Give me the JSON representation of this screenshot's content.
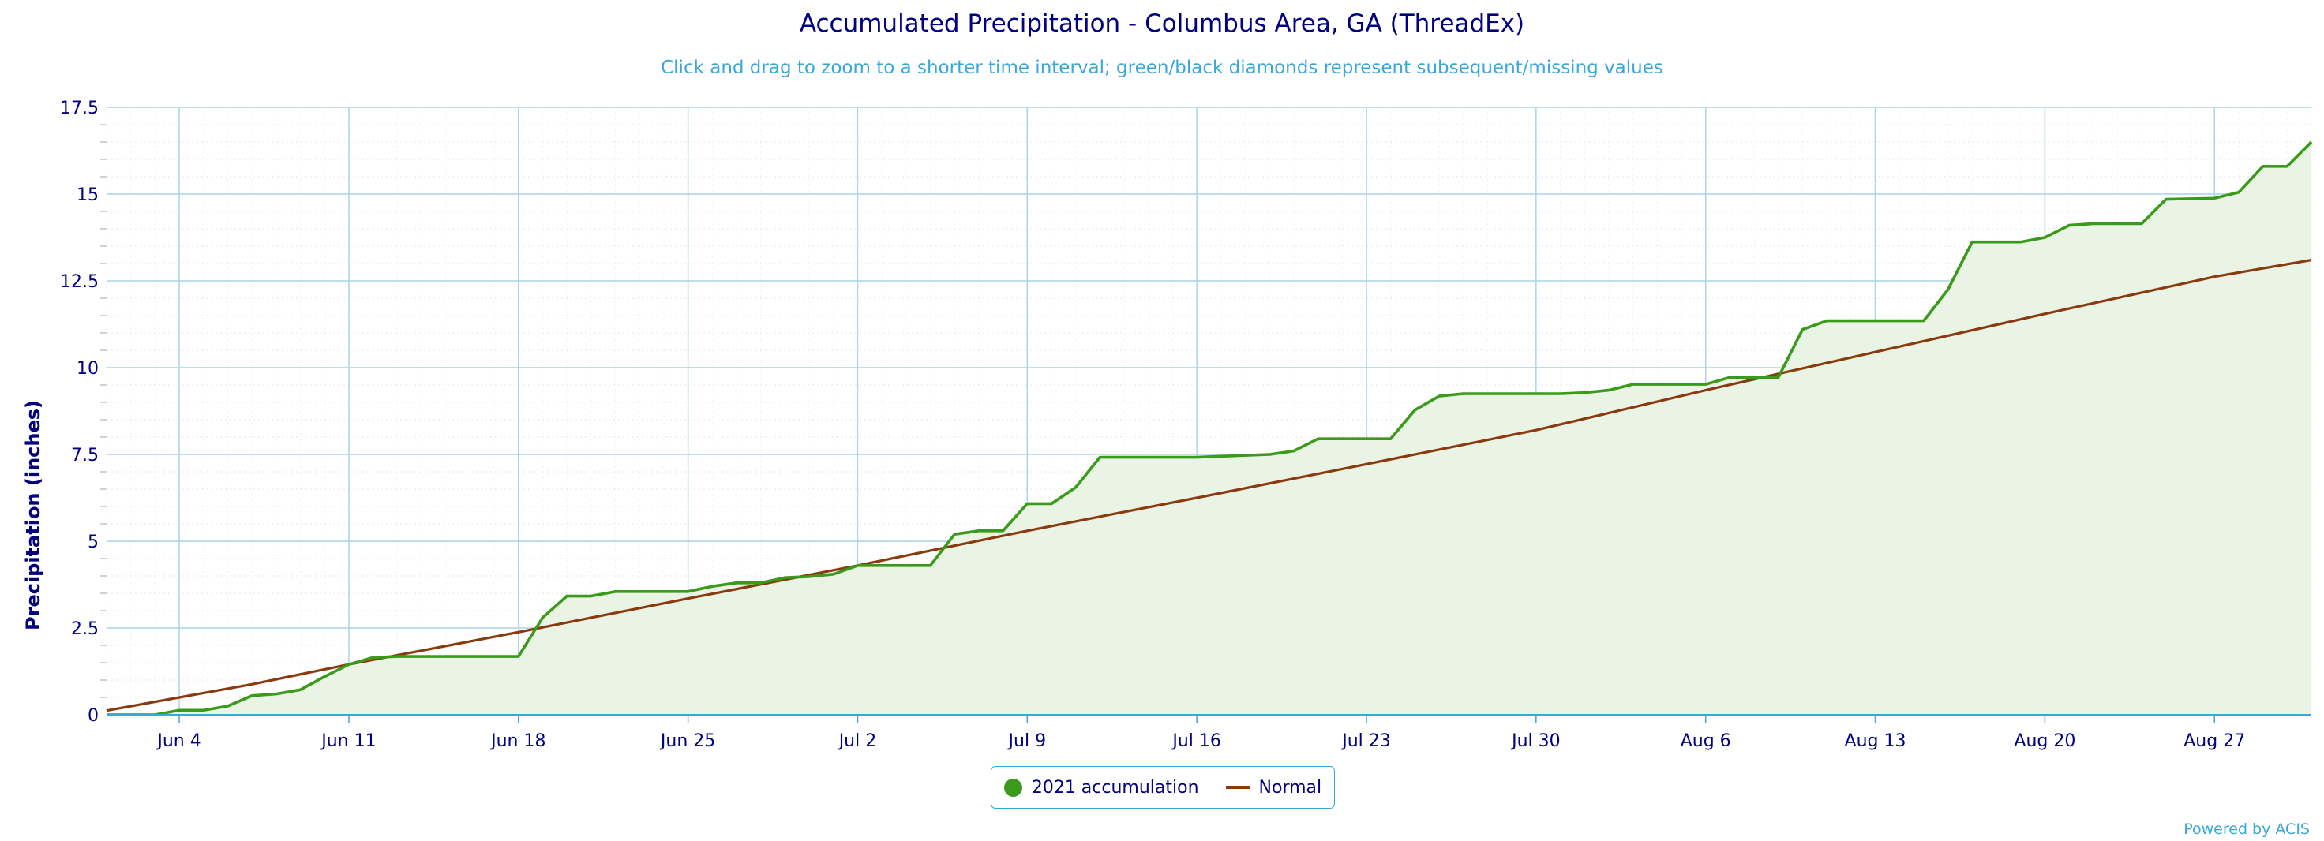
{
  "chart_data": {
    "type": "line",
    "title": "Accumulated Precipitation - Columbus Area, GA (ThreadEx)",
    "subtitle": "Click and drag to zoom to a shorter time interval; green/black diamonds represent subsequent/missing values",
    "xlabel": "",
    "ylabel": "Precipitation (inches)",
    "ylim": [
      0,
      17.5
    ],
    "yticks": [
      "0",
      "2.5",
      "5",
      "7.5",
      "10",
      "12.5",
      "15",
      "17.5"
    ],
    "x_range": [
      "2021-06-01",
      "2021-08-31"
    ],
    "x_tick_dates": [
      "2021-06-04",
      "2021-06-11",
      "2021-06-18",
      "2021-06-25",
      "2021-07-02",
      "2021-07-09",
      "2021-07-16",
      "2021-07-23",
      "2021-07-30",
      "2021-08-06",
      "2021-08-13",
      "2021-08-20",
      "2021-08-27"
    ],
    "x_tick_labels": [
      "Jun 4",
      "Jun 11",
      "Jun 18",
      "Jun 25",
      "Jul 2",
      "Jul 9",
      "Jul 16",
      "Jul 23",
      "Jul 30",
      "Aug 6",
      "Aug 13",
      "Aug 20",
      "Aug 27"
    ],
    "grid": true,
    "legend_position": "bottom-center",
    "series": [
      {
        "name": "2021 accumulation",
        "color": "#3a9a1a",
        "fill": "#eaf4e4",
        "points": [
          [
            "2021-06-01",
            0.0
          ],
          [
            "2021-06-03",
            0.0
          ],
          [
            "2021-06-04",
            0.13
          ],
          [
            "2021-06-05",
            0.13
          ],
          [
            "2021-06-06",
            0.25
          ],
          [
            "2021-06-07",
            0.55
          ],
          [
            "2021-06-08",
            0.6
          ],
          [
            "2021-06-09",
            0.72
          ],
          [
            "2021-06-10",
            1.1
          ],
          [
            "2021-06-11",
            1.45
          ],
          [
            "2021-06-12",
            1.65
          ],
          [
            "2021-06-13",
            1.68
          ],
          [
            "2021-06-18",
            1.68
          ],
          [
            "2021-06-19",
            2.8
          ],
          [
            "2021-06-20",
            3.42
          ],
          [
            "2021-06-21",
            3.42
          ],
          [
            "2021-06-22",
            3.55
          ],
          [
            "2021-06-25",
            3.55
          ],
          [
            "2021-06-26",
            3.7
          ],
          [
            "2021-06-27",
            3.8
          ],
          [
            "2021-06-28",
            3.8
          ],
          [
            "2021-06-29",
            3.95
          ],
          [
            "2021-06-30",
            3.98
          ],
          [
            "2021-07-01",
            4.05
          ],
          [
            "2021-07-02",
            4.3
          ],
          [
            "2021-07-05",
            4.3
          ],
          [
            "2021-07-06",
            5.2
          ],
          [
            "2021-07-07",
            5.3
          ],
          [
            "2021-07-08",
            5.3
          ],
          [
            "2021-07-09",
            6.08
          ],
          [
            "2021-07-10",
            6.08
          ],
          [
            "2021-07-11",
            6.55
          ],
          [
            "2021-07-12",
            7.42
          ],
          [
            "2021-07-16",
            7.42
          ],
          [
            "2021-07-19",
            7.5
          ],
          [
            "2021-07-20",
            7.6
          ],
          [
            "2021-07-21",
            7.95
          ],
          [
            "2021-07-24",
            7.95
          ],
          [
            "2021-07-25",
            8.78
          ],
          [
            "2021-07-26",
            9.18
          ],
          [
            "2021-07-27",
            9.25
          ],
          [
            "2021-07-31",
            9.25
          ],
          [
            "2021-08-01",
            9.28
          ],
          [
            "2021-08-02",
            9.35
          ],
          [
            "2021-08-03",
            9.52
          ],
          [
            "2021-08-06",
            9.52
          ],
          [
            "2021-08-07",
            9.72
          ],
          [
            "2021-08-09",
            9.72
          ],
          [
            "2021-08-10",
            11.1
          ],
          [
            "2021-08-11",
            11.35
          ],
          [
            "2021-08-15",
            11.35
          ],
          [
            "2021-08-16",
            12.25
          ],
          [
            "2021-08-17",
            13.62
          ],
          [
            "2021-08-19",
            13.62
          ],
          [
            "2021-08-20",
            13.75
          ],
          [
            "2021-08-21",
            14.1
          ],
          [
            "2021-08-22",
            14.15
          ],
          [
            "2021-08-24",
            14.15
          ],
          [
            "2021-08-25",
            14.85
          ],
          [
            "2021-08-27",
            14.88
          ],
          [
            "2021-08-28",
            15.05
          ],
          [
            "2021-08-29",
            15.8
          ],
          [
            "2021-08-30",
            15.8
          ],
          [
            "2021-08-31",
            16.5
          ]
        ]
      },
      {
        "name": "Normal",
        "color": "#8b3a0f",
        "points": [
          [
            "2021-06-01",
            0.12
          ],
          [
            "2021-06-04",
            0.5
          ],
          [
            "2021-06-07",
            0.88
          ],
          [
            "2021-06-11",
            1.45
          ],
          [
            "2021-06-18",
            2.38
          ],
          [
            "2021-06-25",
            3.35
          ],
          [
            "2021-07-02",
            4.3
          ],
          [
            "2021-07-09",
            5.3
          ],
          [
            "2021-07-16",
            6.25
          ],
          [
            "2021-07-23",
            7.22
          ],
          [
            "2021-07-30",
            8.2
          ],
          [
            "2021-08-06",
            9.35
          ],
          [
            "2021-08-13",
            10.45
          ],
          [
            "2021-08-20",
            11.55
          ],
          [
            "2021-08-27",
            12.62
          ],
          [
            "2021-08-31",
            13.1
          ]
        ]
      }
    ]
  },
  "legend": {
    "items": [
      {
        "label": "2021 accumulation",
        "color": "#3a9a1a"
      },
      {
        "label": "Normal",
        "color": "#8b3a0f"
      }
    ]
  },
  "credit": "Powered by ACIS"
}
